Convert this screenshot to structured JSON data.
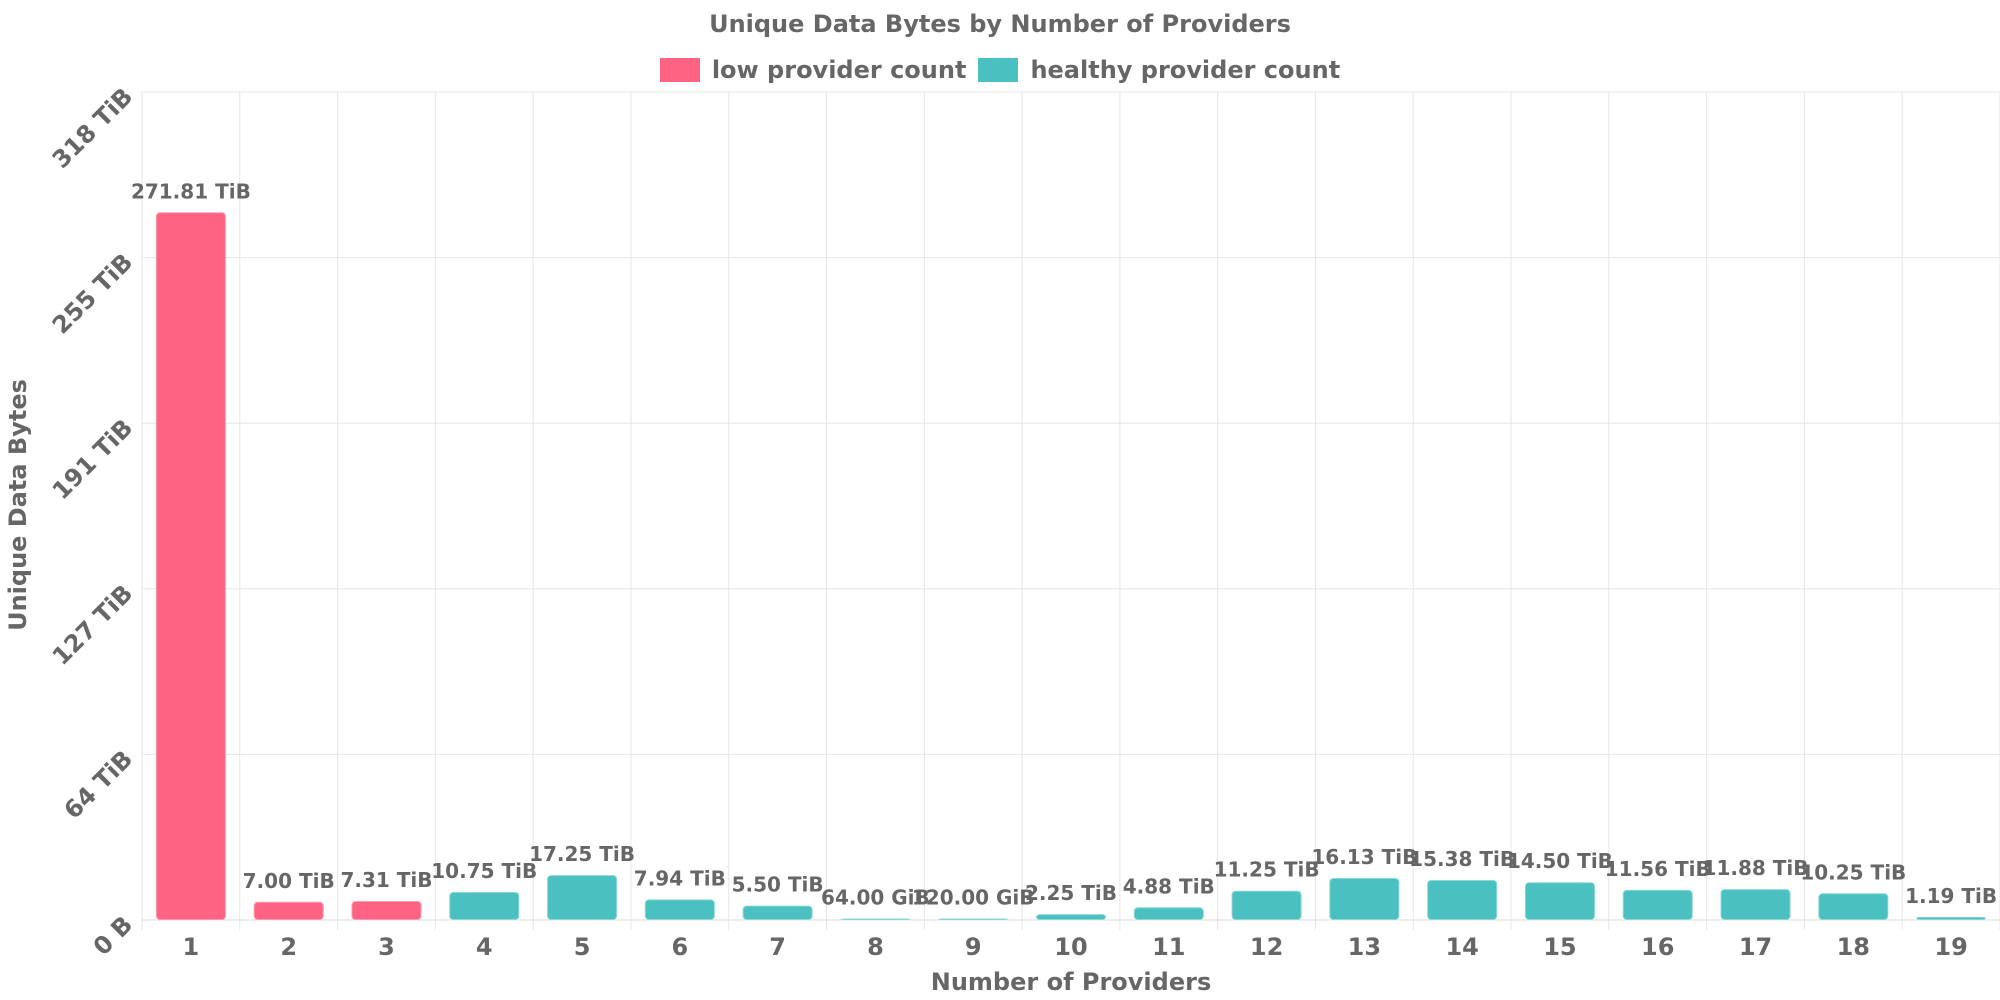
{
  "chart_data": {
    "type": "bar",
    "title": "Unique Data Bytes by Number of Providers",
    "xlabel": "Number of Providers",
    "ylabel": "Unique Data Bytes",
    "y_unit": "TiB",
    "ylim": [
      0,
      318
    ],
    "yticks": [
      {
        "value": 0,
        "label": "0 B"
      },
      {
        "value": 63.6,
        "label": "64 TiB"
      },
      {
        "value": 127.2,
        "label": "127 TiB"
      },
      {
        "value": 190.8,
        "label": "191 TiB"
      },
      {
        "value": 254.4,
        "label": "255 TiB"
      },
      {
        "value": 318,
        "label": "318 TiB"
      }
    ],
    "grid": true,
    "legend": {
      "position": "top-center",
      "entries": [
        {
          "name": "low provider count",
          "color": "#ff6384"
        },
        {
          "name": "healthy provider count",
          "color": "#4bc0c0"
        }
      ]
    },
    "categories": [
      "1",
      "2",
      "3",
      "4",
      "5",
      "6",
      "7",
      "8",
      "9",
      "10",
      "11",
      "12",
      "13",
      "14",
      "15",
      "16",
      "17",
      "18",
      "19"
    ],
    "values": [
      271.81,
      7.0,
      7.31,
      10.75,
      17.25,
      7.94,
      5.5,
      0.0625,
      0.1172,
      2.25,
      4.88,
      11.25,
      16.13,
      15.38,
      14.5,
      11.56,
      11.88,
      10.25,
      1.19
    ],
    "labels": [
      "271.81 TiB",
      "7.00 TiB",
      "7.31 TiB",
      "10.75 TiB",
      "17.25 TiB",
      "7.94 TiB",
      "5.50 TiB",
      "64.00 GiB",
      "120.00 GiB",
      "2.25 TiB",
      "4.88 TiB",
      "11.25 TiB",
      "16.13 TiB",
      "15.38 TiB",
      "14.50 TiB",
      "11.56 TiB",
      "11.88 TiB",
      "10.25 TiB",
      "1.19 TiB"
    ],
    "series_assignment": [
      "low provider count",
      "low provider count",
      "low provider count",
      "healthy provider count",
      "healthy provider count",
      "healthy provider count",
      "healthy provider count",
      "healthy provider count",
      "healthy provider count",
      "healthy provider count",
      "healthy provider count",
      "healthy provider count",
      "healthy provider count",
      "healthy provider count",
      "healthy provider count",
      "healthy provider count",
      "healthy provider count",
      "healthy provider count",
      "healthy provider count"
    ]
  }
}
